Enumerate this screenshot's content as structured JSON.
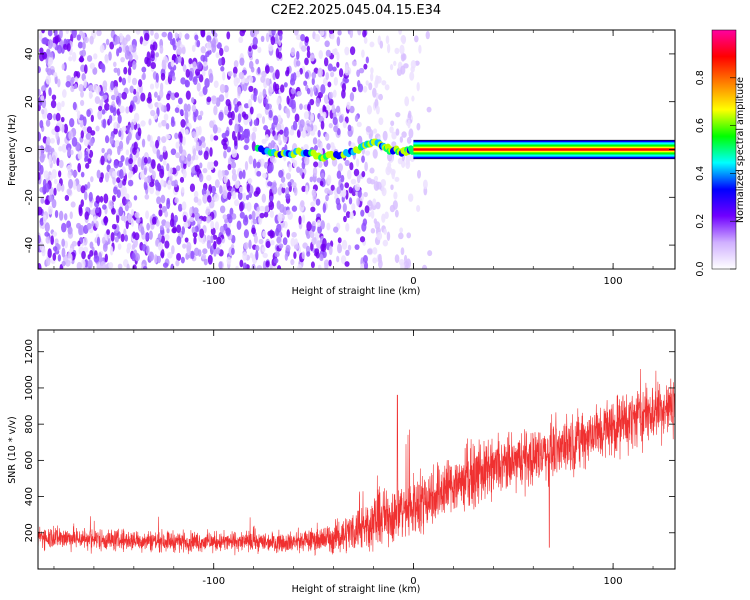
{
  "title": "C2E2.2025.045.04.15.E34",
  "chart_data": [
    {
      "type": "heatmap",
      "xlabel": "Height of straight line (km)",
      "ylabel": "Frequency (Hz)",
      "xlim": [
        -188,
        131
      ],
      "ylim": [
        -50,
        50
      ],
      "x_ticks": [
        -100,
        0,
        100
      ],
      "y_ticks": [
        -40,
        -20,
        0,
        20,
        40
      ],
      "grid": false,
      "colorbar": {
        "label": "Normalized spectral amplitude",
        "range": [
          0,
          1
        ],
        "ticks": [
          0.0,
          0.2,
          0.4,
          0.6,
          0.8
        ],
        "tick_labels": [
          "0.0",
          "0.2",
          "0.4",
          "0.6",
          "0.8"
        ],
        "colormap": [
          "#ffffff",
          "#d0b0ff",
          "#7000ff",
          "#0000ff",
          "#00ffff",
          "#00ff00",
          "#ffff00",
          "#ff8000",
          "#ff0000",
          "#ff00a0"
        ]
      },
      "features": {
        "noise_region_x": [
          -188,
          -45
        ],
        "fading_noise_x": [
          -45,
          10
        ],
        "signal_track": [
          {
            "x": -78,
            "y": 0
          },
          {
            "x": -65,
            "y": -2
          },
          {
            "x": -55,
            "y": -1
          },
          {
            "x": -45,
            "y": -3
          },
          {
            "x": -35,
            "y": -2
          },
          {
            "x": -25,
            "y": 1
          },
          {
            "x": -18,
            "y": 3
          },
          {
            "x": -12,
            "y": 0
          },
          {
            "x": -5,
            "y": -1
          },
          {
            "x": 0,
            "y": 0
          }
        ],
        "steady_tone": {
          "x_start": 0,
          "x_end": 131,
          "y": 0,
          "bandwidth": 1.5
        }
      }
    },
    {
      "type": "line",
      "xlabel": "Height of straight line (km)",
      "ylabel": "SNR (10 * v/v)",
      "xlim": [
        -188,
        131
      ],
      "ylim": [
        0,
        1320
      ],
      "x_ticks": [
        -100,
        0,
        100
      ],
      "y_ticks": [
        200,
        400,
        600,
        800,
        1000,
        1200
      ],
      "grid": false,
      "line_color": "#f03030",
      "series_envelope": {
        "x": [
          -188,
          -150,
          -100,
          -60,
          -40,
          -20,
          0,
          20,
          40,
          60,
          80,
          100,
          120,
          131
        ],
        "mid": [
          180,
          160,
          150,
          150,
          170,
          260,
          350,
          470,
          550,
          620,
          700,
          790,
          870,
          900
        ],
        "spread": [
          70,
          65,
          60,
          60,
          90,
          160,
          190,
          180,
          170,
          170,
          170,
          180,
          180,
          170
        ]
      },
      "spikes": [
        {
          "x": -8,
          "y": 960
        },
        {
          "x": 68,
          "y": 120
        }
      ]
    }
  ]
}
